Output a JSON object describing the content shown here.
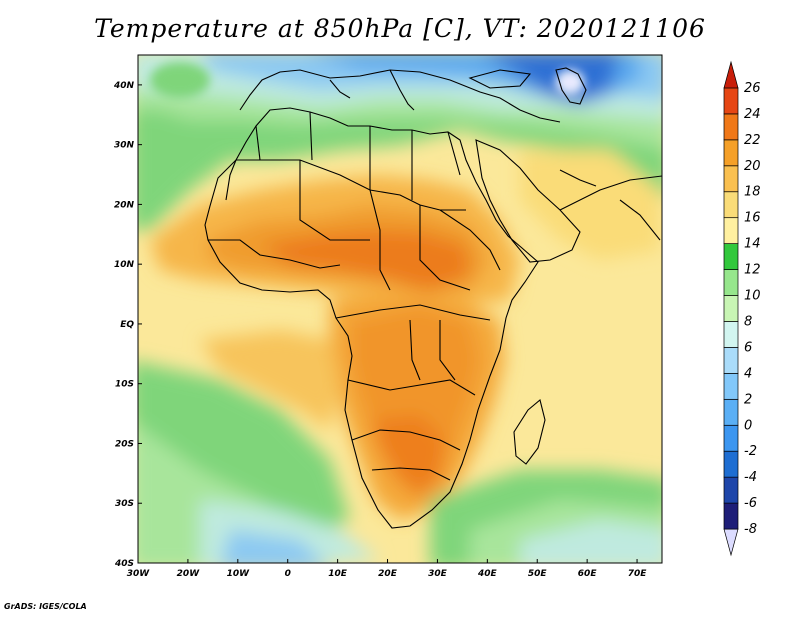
{
  "title": "Temperature at 850hPa [C], VT: 2020121106",
  "credit": "GrADS: IGES/COLA",
  "map": {
    "lon_range": [
      -30,
      75
    ],
    "lat_range": [
      -40,
      45
    ],
    "lon_ticks": [
      {
        "value": -30,
        "label": "30W"
      },
      {
        "value": -20,
        "label": "20W"
      },
      {
        "value": -10,
        "label": "10W"
      },
      {
        "value": 0,
        "label": "0"
      },
      {
        "value": 10,
        "label": "10E"
      },
      {
        "value": 20,
        "label": "20E"
      },
      {
        "value": 30,
        "label": "30E"
      },
      {
        "value": 40,
        "label": "40E"
      },
      {
        "value": 50,
        "label": "50E"
      },
      {
        "value": 60,
        "label": "60E"
      },
      {
        "value": 70,
        "label": "70E"
      }
    ],
    "lat_ticks": [
      {
        "value": 40,
        "label": "40N"
      },
      {
        "value": 30,
        "label": "30N"
      },
      {
        "value": 20,
        "label": "20N"
      },
      {
        "value": 10,
        "label": "10N"
      },
      {
        "value": 0,
        "label": "EQ"
      },
      {
        "value": -10,
        "label": "10S"
      },
      {
        "value": -20,
        "label": "20S"
      },
      {
        "value": -30,
        "label": "30S"
      },
      {
        "value": -40,
        "label": "40S"
      }
    ]
  },
  "colorbar": {
    "levels": [
      -8,
      -6,
      -4,
      -2,
      0,
      2,
      4,
      6,
      8,
      10,
      12,
      14,
      16,
      18,
      20,
      22,
      24,
      26
    ],
    "labels": [
      "-8",
      "-6",
      "-4",
      "-2",
      "0",
      "2",
      "4",
      "6",
      "8",
      "10",
      "12",
      "14",
      "16",
      "18",
      "20",
      "22",
      "24",
      "26"
    ],
    "colors": [
      "#dcdcff",
      "#1e1e78",
      "#1e46aa",
      "#1e6ed2",
      "#3c96f0",
      "#5aaff5",
      "#82c8fa",
      "#aadcfa",
      "#d2f5f0",
      "#c8f5b4",
      "#96e68c",
      "#32c83c",
      "#fff0a0",
      "#fadc78",
      "#fac050",
      "#f5a028",
      "#f07818",
      "#e64614",
      "#c81e0a"
    ]
  },
  "color_key": {
    "ocean": "#f6e389",
    "land_dark": "#000000",
    "frame": "#000000"
  }
}
